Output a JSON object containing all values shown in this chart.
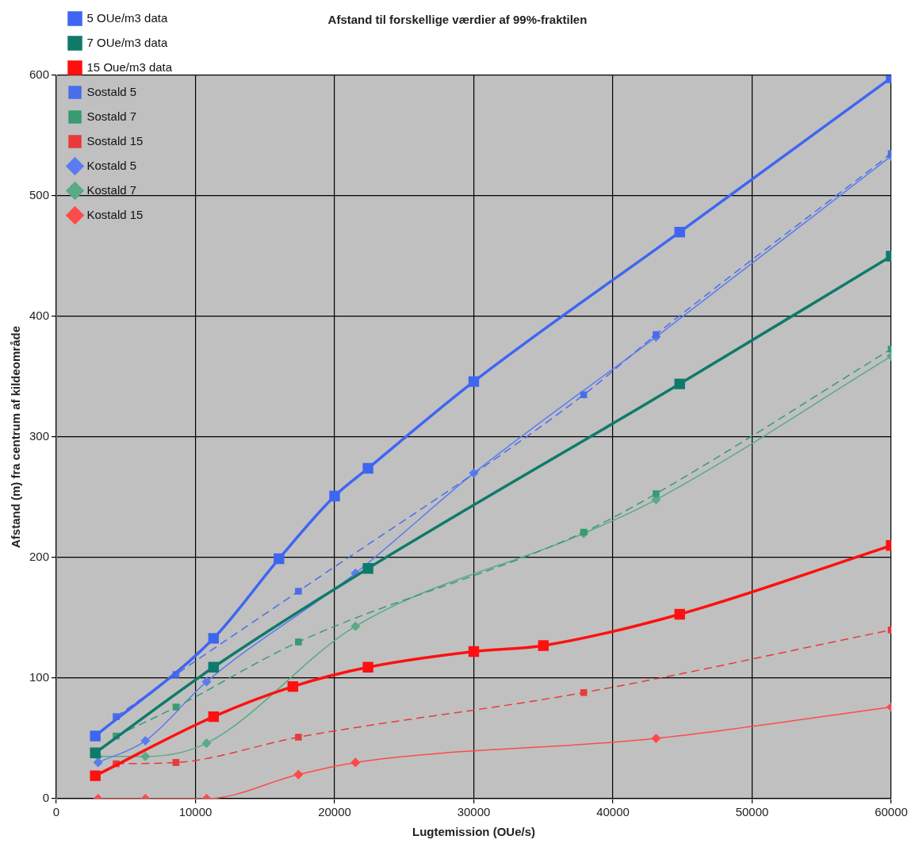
{
  "chart_data": {
    "type": "line",
    "title": "Afstand til forskellige værdier af 99%-fraktilen",
    "xlabel": "Lugtemission (OUe/s)",
    "ylabel": "Afstand (m) fra centrum af kildeområde",
    "xlim": [
      0,
      60000
    ],
    "ylim": [
      0,
      600
    ],
    "xticks": [
      0,
      10000,
      20000,
      30000,
      40000,
      50000,
      60000
    ],
    "yticks": [
      0,
      100,
      200,
      300,
      400,
      500,
      600
    ],
    "grid": true,
    "legend": "top left",
    "series": [
      {
        "name": "5 OUe/m3 data",
        "color": "#3f66f2",
        "marker": "square",
        "line_style": "solid",
        "x": [
          2800,
          11300,
          16000,
          20000,
          22400,
          30000,
          44800,
          60000
        ],
        "values": [
          52,
          133,
          199,
          251,
          274,
          346,
          470,
          598
        ]
      },
      {
        "name": "7 OUe/m3 data",
        "color": "#0f7a6a",
        "marker": "square",
        "line_style": "solid",
        "x": [
          2800,
          11300,
          22400,
          44800,
          60000
        ],
        "values": [
          38,
          109,
          191,
          344,
          450
        ]
      },
      {
        "name": "15 Oue/m3 data",
        "color": "#ff1010",
        "marker": "square",
        "line_style": "solid",
        "x": [
          2800,
          11300,
          17000,
          22400,
          30000,
          35000,
          44800,
          60000
        ],
        "values": [
          19,
          68,
          93,
          109,
          122,
          127,
          153,
          210
        ]
      },
      {
        "name": "Sostald 5",
        "color": "#4a6ee8",
        "marker": "square",
        "line_style": "dashed",
        "x": [
          4300,
          8600,
          17400,
          37900,
          43100,
          60000
        ],
        "values": [
          68,
          103,
          172,
          335,
          385,
          535
        ]
      },
      {
        "name": "Sostald 7",
        "color": "#3a9a72",
        "marker": "square",
        "line_style": "dashed",
        "x": [
          4300,
          8600,
          17400,
          37900,
          43100,
          60000
        ],
        "values": [
          52,
          76,
          130,
          221,
          253,
          373
        ]
      },
      {
        "name": "Sostald 15",
        "color": "#e83a3a",
        "marker": "square",
        "line_style": "dashed",
        "x": [
          4300,
          8600,
          17400,
          37900,
          60000
        ],
        "values": [
          29,
          30,
          51,
          88,
          140
        ]
      },
      {
        "name": "Kostald 5",
        "color": "#5a7cf0",
        "marker": "diamond",
        "line_style": "solid",
        "x": [
          3000,
          6400,
          10800,
          21500,
          30000,
          43100,
          60000
        ],
        "values": [
          30,
          48,
          97,
          187,
          270,
          383,
          533
        ]
      },
      {
        "name": "Kostald 7",
        "color": "#5aaa86",
        "marker": "diamond",
        "line_style": "solid",
        "x": [
          3000,
          6400,
          10800,
          21500,
          37900,
          43100,
          60000
        ],
        "values": [
          35,
          35,
          46,
          143,
          220,
          248,
          367
        ]
      },
      {
        "name": "Kostald 15",
        "color": "#ff4a4a",
        "marker": "diamond",
        "line_style": "solid",
        "x": [
          3000,
          6400,
          10800,
          17400,
          21500,
          43100,
          60000
        ],
        "values": [
          0,
          0,
          0,
          20,
          30,
          50,
          76
        ]
      }
    ]
  }
}
